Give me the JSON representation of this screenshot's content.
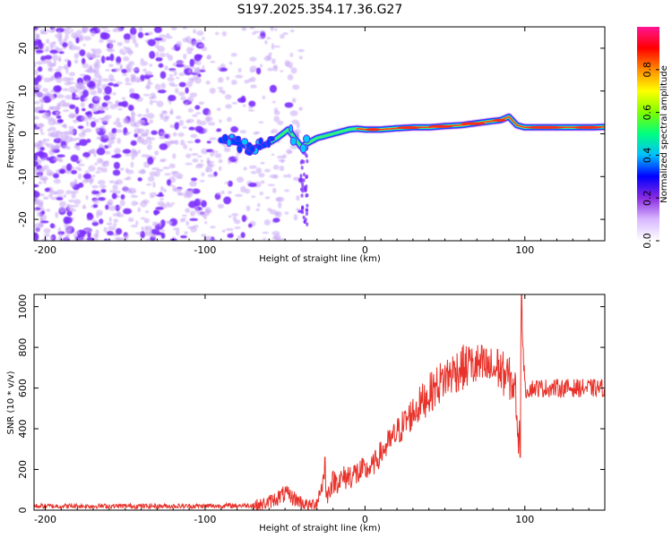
{
  "title": "S197.2025.354.17.36.G27",
  "colors": {
    "noise_purple": "#7b2cff",
    "noise_light": "#c8a8f5",
    "trace_red": "#e8322a",
    "axis": "#000000"
  },
  "chart_data": [
    {
      "type": "heatmap",
      "name": "spectrogram",
      "xlabel": "Height of straight line (km)",
      "ylabel": "Frequency (Hz)",
      "xlim": [
        -207,
        150
      ],
      "ylim": [
        -25,
        25
      ],
      "x_ticks": [
        -200,
        -100,
        0,
        100
      ],
      "y_ticks": [
        -20,
        -10,
        0,
        10,
        20
      ],
      "x_tick_labels": [
        "-200",
        "-100",
        "0",
        "100"
      ],
      "y_tick_labels": [
        "-20",
        "-10",
        "0",
        "10",
        "20"
      ],
      "signal_ridge": {
        "description": "frequency of strongest spectral amplitude vs height",
        "x": [
          -90,
          -80,
          -70,
          -62,
          -55,
          -48,
          -40,
          -35,
          -30,
          -25,
          -20,
          -15,
          -10,
          -5,
          0,
          10,
          20,
          30,
          40,
          50,
          60,
          70,
          80,
          85,
          90,
          95,
          100,
          110,
          120,
          130,
          140,
          150
        ],
        "y": [
          -1.5,
          -2.0,
          -3.5,
          -2.5,
          -1.0,
          1.0,
          -3.0,
          -2.0,
          -1.0,
          -0.5,
          0.0,
          0.5,
          1.0,
          1.2,
          1.0,
          1.0,
          1.3,
          1.5,
          1.5,
          1.8,
          2.0,
          2.5,
          3.0,
          3.2,
          4.0,
          2.0,
          1.5,
          1.5,
          1.5,
          1.5,
          1.5,
          1.6
        ]
      },
      "noise_region_xlim": [
        -207,
        -40
      ]
    },
    {
      "type": "colorbar",
      "name": "amplitude-colorbar",
      "label": "Normalized spectral amplitude",
      "range": [
        0.0,
        1.0
      ],
      "ticks": [
        0.0,
        0.2,
        0.4,
        0.6,
        0.8
      ],
      "tick_labels": [
        "0.0",
        "0.2",
        "0.4",
        "0.6",
        "0.8"
      ],
      "colormap": [
        "#ffffff",
        "#d9b8ff",
        "#8a2be2",
        "#0000ff",
        "#00bfff",
        "#00ff7f",
        "#7fff00",
        "#ffff00",
        "#ff8c00",
        "#ff0000",
        "#ff1493"
      ]
    },
    {
      "type": "line",
      "name": "snr",
      "xlabel": "Height of straight line (km)",
      "ylabel": "SNR (10 * v/v)",
      "xlim": [
        -207,
        150
      ],
      "ylim": [
        0,
        1060
      ],
      "x_ticks": [
        -200,
        -100,
        0,
        100
      ],
      "y_ticks": [
        0,
        200,
        400,
        600,
        800,
        1000
      ],
      "x_tick_labels": [
        "-200",
        "-100",
        "0",
        "100"
      ],
      "y_tick_labels": [
        "0",
        "200",
        "400",
        "600",
        "800",
        "1000"
      ],
      "series": [
        {
          "name": "SNR",
          "x": [
            -207,
            -180,
            -150,
            -120,
            -100,
            -80,
            -65,
            -60,
            -55,
            -50,
            -45,
            -40,
            -35,
            -30,
            -26,
            -24,
            -22,
            -20,
            -15,
            -10,
            -5,
            0,
            5,
            10,
            20,
            30,
            40,
            50,
            60,
            65,
            70,
            75,
            80,
            85,
            90,
            94,
            96,
            97,
            98,
            100,
            105,
            110,
            120,
            130,
            140,
            150
          ],
          "y": [
            20,
            20,
            20,
            20,
            20,
            22,
            25,
            40,
            60,
            80,
            60,
            40,
            20,
            40,
            150,
            60,
            110,
            140,
            150,
            170,
            180,
            190,
            220,
            280,
            380,
            480,
            570,
            650,
            700,
            700,
            710,
            700,
            690,
            680,
            650,
            600,
            300,
            600,
            980,
            590,
            600,
            600,
            600,
            600,
            600,
            600
          ],
          "spike_peaks": [
            {
              "x": -25,
              "y": 260
            },
            {
              "x": 98,
              "y": 1060
            },
            {
              "x": 97,
              "y": 260
            },
            {
              "x": 65,
              "y": 800
            },
            {
              "x": 83,
              "y": 790
            }
          ]
        }
      ]
    }
  ]
}
